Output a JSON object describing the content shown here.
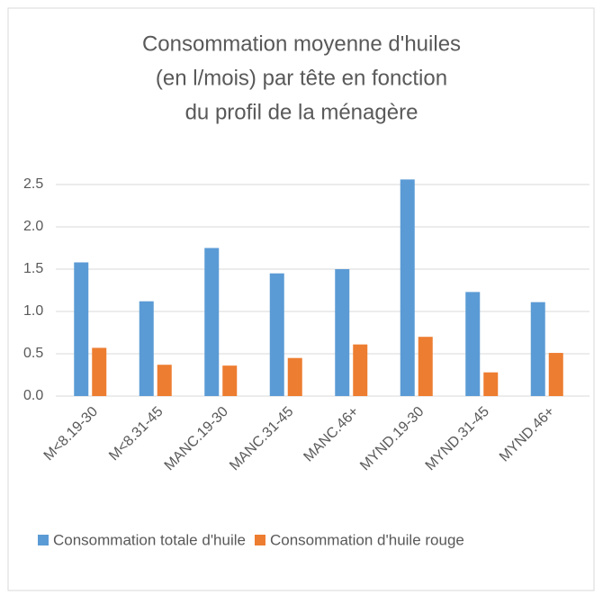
{
  "chart_data": {
    "type": "bar",
    "title": [
      "Consommation moyenne d'huiles",
      "(en l/mois) par tête en fonction",
      "du profil de la ménagère"
    ],
    "categories": [
      "M<8.19-30",
      "M<8.31-45",
      "MANC.19-30",
      "MANC.31-45",
      "MANC.46+",
      "MYND.19-30",
      "MYND.31-45",
      "MYND.46+"
    ],
    "series": [
      {
        "name": "Consommation totale d'huile",
        "color": "#5b9bd5",
        "values": [
          1.58,
          1.12,
          1.75,
          1.45,
          1.5,
          2.56,
          1.23,
          1.11
        ]
      },
      {
        "name": "Consommation d'huile rouge",
        "color": "#ed7d31",
        "values": [
          0.57,
          0.37,
          0.36,
          0.45,
          0.61,
          0.7,
          0.28,
          0.51
        ]
      }
    ],
    "ylim": [
      0,
      2.5
    ],
    "yticks": [
      {
        "value": 0,
        "label": "0.0"
      },
      0.5,
      {
        "value": 1,
        "label": "1.0"
      },
      1.5,
      {
        "value": 2,
        "label": "2.0"
      },
      2.5
    ],
    "grid": true,
    "legend": "bottom"
  }
}
